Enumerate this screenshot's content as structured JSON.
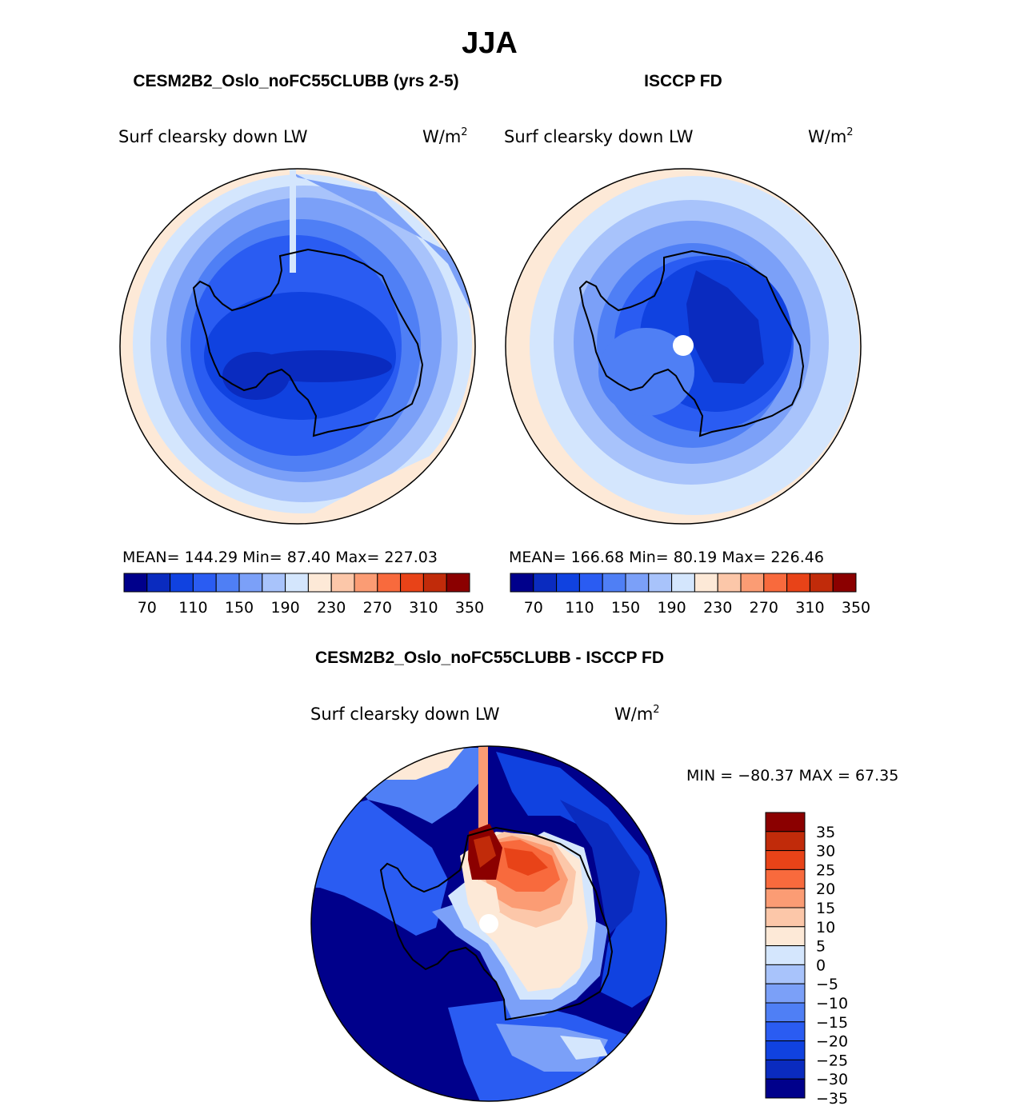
{
  "season": "JJA",
  "panel_model": {
    "title": "CESM2B2_Oslo_noFC55CLUBB (yrs 2-5)",
    "variable": "Surf clearsky down LW",
    "units_base": "W/m",
    "units_exp": "2",
    "stats": "MEAN= 144.29   Min=  87.40   Max= 227.03"
  },
  "panel_obs": {
    "title": "ISCCP FD",
    "variable": "Surf clearsky down LW",
    "units_base": "W/m",
    "units_exp": "2",
    "stats": "MEAN= 166.68   Min=  80.19   Max= 226.46"
  },
  "panel_diff": {
    "title": "CESM2B2_Oslo_noFC55CLUBB - ISCCP FD",
    "variable": "Surf clearsky down LW",
    "units_base": "W/m",
    "units_exp": "2",
    "minmax": "MIN = −80.37 MAX =   67.35"
  },
  "abs_colorbar": {
    "colors": [
      "#00008b",
      "#0a2bbf",
      "#1042e0",
      "#2a5cf2",
      "#4f7ff5",
      "#7ba0f8",
      "#a8c3fb",
      "#d4e6fd",
      "#fde9d7",
      "#fcc7a9",
      "#fb9c74",
      "#f86a3d",
      "#e84318",
      "#c12b0a",
      "#8b0000"
    ],
    "labels": [
      "70",
      "110",
      "150",
      "190",
      "230",
      "270",
      "310",
      "350"
    ]
  },
  "diff_colorbar": {
    "colors": [
      "#00008b",
      "#0a2bbf",
      "#1042e0",
      "#2a5cf2",
      "#4f7ff5",
      "#7ba0f8",
      "#a8c3fb",
      "#d4e6fd",
      "#fde9d7",
      "#fcc7a9",
      "#fb9c74",
      "#f86a3d",
      "#e84318",
      "#c12b0a",
      "#8b0000"
    ],
    "labels": [
      "35",
      "30",
      "25",
      "20",
      "15",
      "10",
      "5",
      "0",
      "−5",
      "−10",
      "−15",
      "−20",
      "−25",
      "−30",
      "−35"
    ]
  }
}
